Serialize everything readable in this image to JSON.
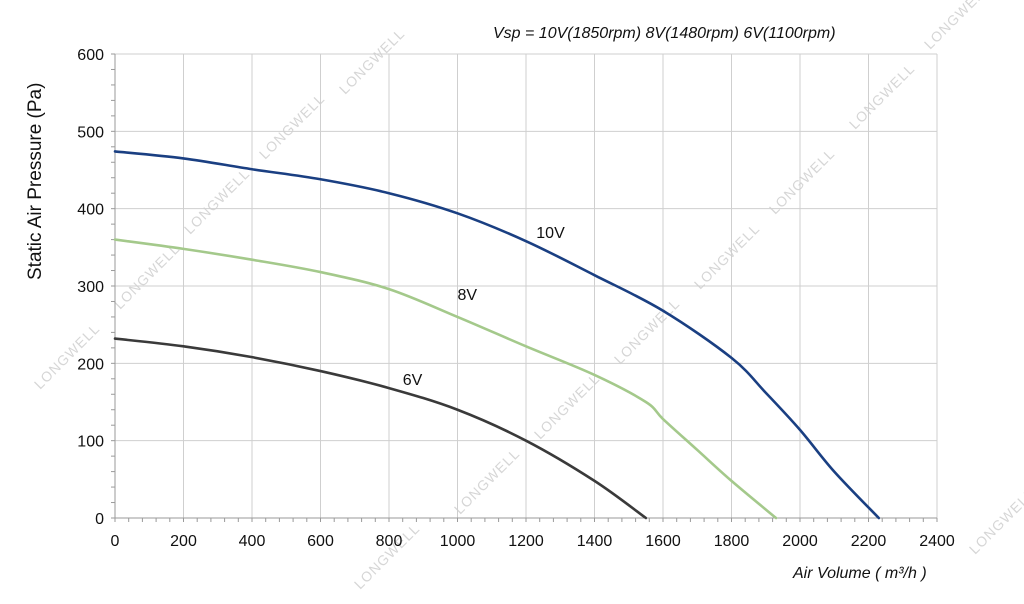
{
  "chart_data": {
    "type": "line",
    "subtitle": "Vsp = 10V(1850rpm)  8V(1480rpm)   6V(1100rpm)",
    "xlabel": "Air Volume ( m³/h )",
    "ylabel": "Static Air Pressure  (Pa)",
    "xlim": [
      0,
      2400
    ],
    "ylim": [
      0,
      600
    ],
    "xticks": [
      0,
      200,
      400,
      600,
      800,
      1000,
      1200,
      1400,
      1600,
      1800,
      2000,
      2200,
      2400
    ],
    "yticks": [
      0,
      100,
      200,
      300,
      400,
      500,
      600
    ],
    "grid": true,
    "series": [
      {
        "name": "10V",
        "color": "#1a3f82",
        "points": [
          [
            0,
            474
          ],
          [
            200,
            465
          ],
          [
            400,
            451
          ],
          [
            600,
            438
          ],
          [
            800,
            420
          ],
          [
            1000,
            394
          ],
          [
            1200,
            358
          ],
          [
            1400,
            314
          ],
          [
            1600,
            268
          ],
          [
            1800,
            207
          ],
          [
            1900,
            162
          ],
          [
            2000,
            114
          ],
          [
            2100,
            60
          ],
          [
            2230,
            0
          ]
        ]
      },
      {
        "name": "8V",
        "color": "#a4c98b",
        "points": [
          [
            0,
            360
          ],
          [
            200,
            348
          ],
          [
            400,
            334
          ],
          [
            600,
            318
          ],
          [
            800,
            296
          ],
          [
            1000,
            260
          ],
          [
            1200,
            222
          ],
          [
            1400,
            185
          ],
          [
            1550,
            150
          ],
          [
            1600,
            128
          ],
          [
            1700,
            88
          ],
          [
            1800,
            48
          ],
          [
            1930,
            0
          ]
        ]
      },
      {
        "name": "6V",
        "color": "#3a3a3a",
        "points": [
          [
            0,
            232
          ],
          [
            200,
            222
          ],
          [
            400,
            208
          ],
          [
            600,
            190
          ],
          [
            800,
            168
          ],
          [
            1000,
            140
          ],
          [
            1200,
            100
          ],
          [
            1400,
            48
          ],
          [
            1550,
            0
          ]
        ]
      }
    ],
    "series_label_positions": [
      {
        "name": "10V",
        "at": [
          1230,
          362
        ]
      },
      {
        "name": "8V",
        "at": [
          1000,
          282
        ]
      },
      {
        "name": "6V",
        "at": [
          840,
          172
        ]
      }
    ]
  },
  "watermark": "LONGWELL"
}
